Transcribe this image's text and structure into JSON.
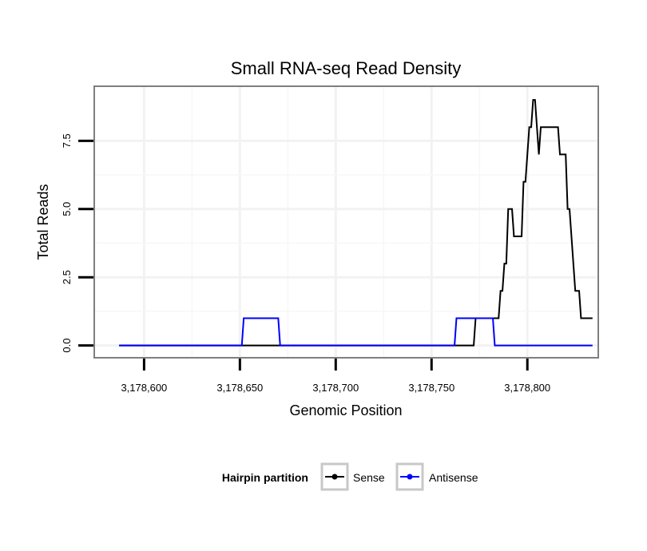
{
  "chart_data": {
    "type": "line",
    "title": "Small RNA-seq Read Density",
    "xlabel": "Genomic Position",
    "ylabel": "Total Reads",
    "xlim": [
      3178574,
      3178837
    ],
    "ylim": [
      -0.45,
      9.5
    ],
    "x_ticks": [
      3178600,
      3178650,
      3178700,
      3178750,
      3178800
    ],
    "x_tick_labels": [
      "3,178,600",
      "3,178,650",
      "3,178,700",
      "3,178,750",
      "3,178,800"
    ],
    "y_ticks": [
      0,
      2.5,
      5,
      7.5
    ],
    "y_tick_labels": [
      "0.0",
      "2.5",
      "5.0",
      "7.5"
    ],
    "grid": true,
    "legend": {
      "title": "Hairpin partition",
      "placement": "bottom"
    },
    "series": [
      {
        "name": "Sense",
        "color": "#000000",
        "x": [
          3178587,
          3178772,
          3178773,
          3178783,
          3178784,
          3178785,
          3178786,
          3178787,
          3178788,
          3178789,
          3178790,
          3178791,
          3178792,
          3178793,
          3178794,
          3178797,
          3178798,
          3178799,
          3178800,
          3178801,
          3178802,
          3178803,
          3178804,
          3178805,
          3178806,
          3178807,
          3178808,
          3178809,
          3178810,
          3178811,
          3178812,
          3178813,
          3178814,
          3178815,
          3178816,
          3178817,
          3178818,
          3178819,
          3178820,
          3178821,
          3178822,
          3178823,
          3178824,
          3178825,
          3178826,
          3178827,
          3178828,
          3178829,
          3178830,
          3178831,
          3178832,
          3178833,
          3178834
        ],
        "values": [
          0,
          0,
          1,
          1,
          1,
          1,
          2,
          2,
          3,
          3,
          5,
          5,
          5,
          4,
          4,
          4,
          6,
          6,
          7,
          8,
          8,
          9,
          9,
          8,
          7,
          8,
          8,
          8,
          8,
          8,
          8,
          8,
          8,
          8,
          8,
          7,
          7,
          7,
          7,
          5,
          5,
          4,
          3,
          2,
          2,
          2,
          1,
          1,
          1,
          1,
          1,
          1,
          1
        ]
      },
      {
        "name": "Antisense",
        "color": "#0000ff",
        "x": [
          3178587,
          3178651,
          3178652,
          3178670,
          3178671,
          3178762,
          3178763,
          3178782,
          3178783,
          3178834
        ],
        "values": [
          0,
          0,
          1,
          1,
          0,
          0,
          1,
          1,
          0,
          0
        ]
      }
    ]
  }
}
